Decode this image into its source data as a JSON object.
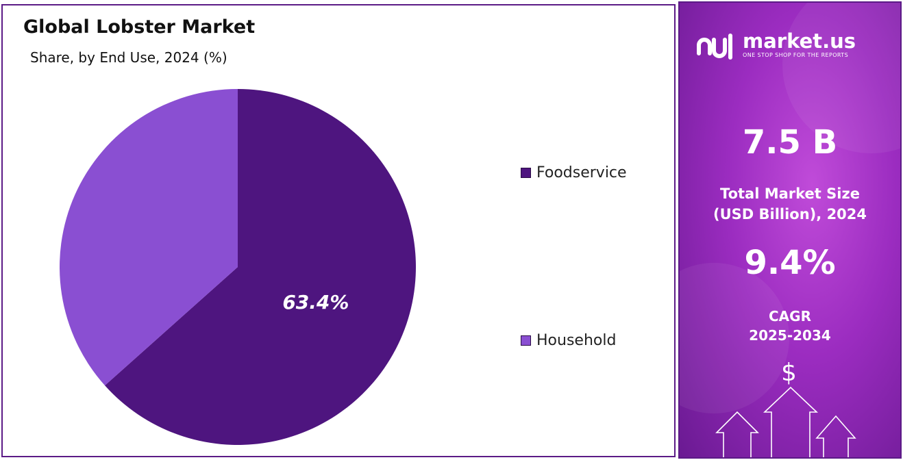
{
  "chart_data": {
    "type": "pie",
    "title": "Global Lobster Market",
    "subtitle": "Share, by End Use, 2024 (%)",
    "slices": [
      {
        "label": "Foodservice",
        "value": 63.4,
        "color": "#4e157f",
        "data_label": "63.4%"
      },
      {
        "label": "Household",
        "value": 36.6,
        "color": "#8a4fd2",
        "data_label": ""
      }
    ],
    "legend_position": "right"
  },
  "sidebar": {
    "brand": "market.us",
    "tagline": "ONE STOP SHOP FOR THE REPORTS",
    "market_size_value": "7.5 B",
    "market_size_label_1": "Total Market Size",
    "market_size_label_2": "(USD Billion), 2024",
    "cagr_value": "9.4%",
    "cagr_label_1": "CAGR",
    "cagr_label_2": "2025-2034",
    "currency_symbol": "$"
  }
}
